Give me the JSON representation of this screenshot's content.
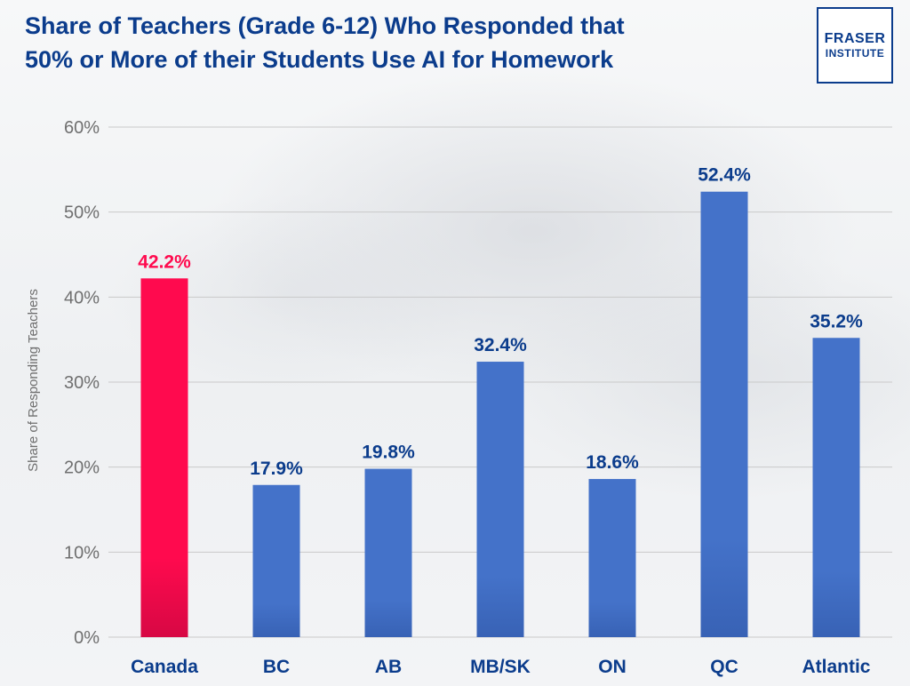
{
  "colors": {
    "title": "#0b3c8c",
    "highlight_bar": "#ff0a4e",
    "highlight_bar_shade": "#d70844",
    "bar": "#4472c9",
    "bar_shade": "#3862b5",
    "highlight_label": "#ff0a4e",
    "label": "#0b3c8c",
    "gridline": "#c9c9c9"
  },
  "logo": {
    "line1": "FRASER",
    "line2": "INSTITUTE"
  },
  "chart_data": {
    "type": "bar",
    "title": [
      "Share of Teachers (Grade 6-12) Who Responded that",
      "50% or More of their Students Use AI for Homework"
    ],
    "ylabel": "Share of Responding Teachers",
    "xlabel": "",
    "categories": [
      "Canada",
      "BC",
      "AB",
      "MB/SK",
      "ON",
      "QC",
      "Atlantic"
    ],
    "values": [
      42.2,
      17.9,
      19.8,
      32.4,
      18.6,
      52.4,
      35.2
    ],
    "value_labels": [
      "42.2%",
      "17.9%",
      "19.8%",
      "32.4%",
      "18.6%",
      "52.4%",
      "35.2%"
    ],
    "highlight_index": 0,
    "ylim": [
      0,
      60
    ],
    "yticks": [
      0,
      10,
      20,
      30,
      40,
      50,
      60
    ],
    "ytick_labels": [
      "0%",
      "10%",
      "20%",
      "30%",
      "40%",
      "50%",
      "60%"
    ],
    "grid": true,
    "legend": "none"
  }
}
